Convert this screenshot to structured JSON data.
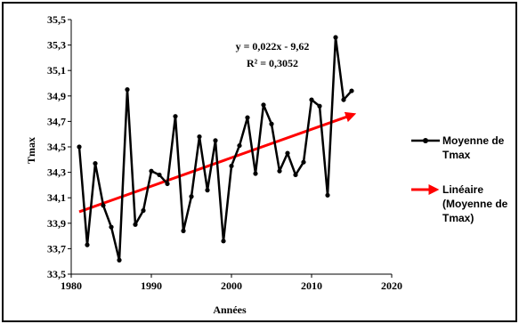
{
  "chart_data": {
    "type": "line",
    "xlabel": "Années",
    "ylabel": "Tmax",
    "xlim": [
      1980,
      2020
    ],
    "ylim": [
      33.5,
      35.5
    ],
    "x_ticks": [
      "1980",
      "1990",
      "2000",
      "2010",
      "2020"
    ],
    "y_ticks": [
      "33,5",
      "33,7",
      "33,9",
      "34,1",
      "34,3",
      "34,5",
      "34,7",
      "34,9",
      "35,1",
      "35,3",
      "35,5"
    ],
    "grid": false,
    "legend_position": "right",
    "annotation": [
      "y = 0,022x - 9,62",
      "R² = 0,3052"
    ],
    "series": [
      {
        "name": "Moyenne de Tmax",
        "color": "#000000",
        "x": [
          1981,
          1982,
          1983,
          1984,
          1985,
          1986,
          1987,
          1988,
          1989,
          1990,
          1991,
          1992,
          1993,
          1994,
          1995,
          1996,
          1997,
          1998,
          1999,
          2000,
          2001,
          2002,
          2003,
          2004,
          2005,
          2006,
          2007,
          2008,
          2009,
          2010,
          2011,
          2012,
          2013,
          2014,
          2015
        ],
        "y": [
          34.5,
          33.73,
          34.37,
          34.04,
          33.87,
          33.61,
          34.95,
          33.89,
          34.0,
          34.31,
          34.28,
          34.21,
          34.74,
          33.84,
          34.11,
          34.58,
          34.16,
          34.55,
          33.76,
          34.35,
          34.51,
          34.73,
          34.29,
          34.83,
          34.68,
          34.31,
          34.45,
          34.28,
          34.38,
          34.87,
          34.82,
          34.12,
          35.36,
          34.87,
          34.94
        ]
      },
      {
        "name": "Linéaire (Moyenne de Tmax)",
        "color": "#ff0000",
        "x": [
          1981,
          2015
        ],
        "y": [
          33.99,
          34.75
        ]
      }
    ]
  },
  "legend": {
    "series1_lines": [
      "Moyenne de",
      "Tmax"
    ],
    "series2_lines": [
      "Linéaire",
      "(Moyenne de",
      "Tmax)"
    ]
  }
}
